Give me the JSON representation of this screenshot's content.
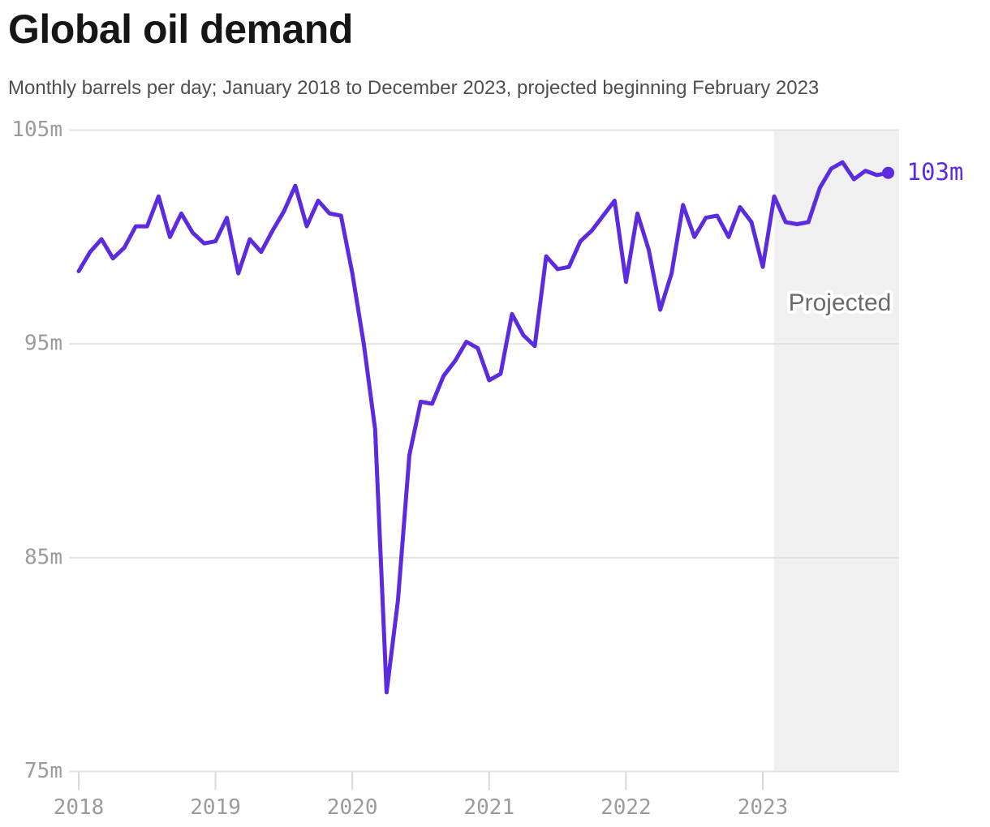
{
  "header": {
    "title": "Global oil demand",
    "subtitle": "Monthly barrels per day; January 2018 to December 2023, projected beginning February 2023"
  },
  "chart_data": {
    "type": "line",
    "title": "Global oil demand",
    "ylabel": "Monthly barrels per day (millions)",
    "xlabel": "",
    "x_start": "2018-01",
    "x_end": "2023-12",
    "ylim": [
      75,
      105
    ],
    "grid": "horizontal",
    "y_ticks": [
      105,
      95,
      85,
      75
    ],
    "y_tick_labels": [
      "105m",
      "95m",
      "85m",
      "75m"
    ],
    "x_tick_labels": [
      "2018",
      "2019",
      "2020",
      "2021",
      "2022",
      "2023"
    ],
    "x_tick_month_indices": [
      0,
      12,
      24,
      36,
      48,
      60
    ],
    "series": [
      {
        "name": "Global oil demand (million barrels per day)",
        "values": [
          98.4,
          99.3,
          99.9,
          99.0,
          99.5,
          100.5,
          100.5,
          101.9,
          100.0,
          101.1,
          100.2,
          99.7,
          99.8,
          100.9,
          98.3,
          99.9,
          99.3,
          100.3,
          101.2,
          102.4,
          100.5,
          101.7,
          101.1,
          101.0,
          98.3,
          95.0,
          91.0,
          78.7,
          83.0,
          89.8,
          92.3,
          92.2,
          93.5,
          94.2,
          95.1,
          94.8,
          93.3,
          93.6,
          96.4,
          95.4,
          94.9,
          99.1,
          98.5,
          98.6,
          99.8,
          100.3,
          101.0,
          101.7,
          97.9,
          101.1,
          99.4,
          96.6,
          98.3,
          101.5,
          100.0,
          100.9,
          101.0,
          100.0,
          101.4,
          100.7,
          98.6,
          101.9,
          100.7,
          100.6,
          100.7,
          102.3,
          103.2,
          103.5,
          102.7,
          103.1,
          102.9,
          103.0
        ]
      }
    ],
    "projected": {
      "label": "Projected",
      "start": "2023-02",
      "start_month_index": 61
    },
    "end_label": "103m",
    "end_value": 103.0,
    "colors": {
      "line": "#5c2be0",
      "end_dot": "#5c2be0",
      "end_label_text": "#5c2be0",
      "grid": "#e3e3e3",
      "tick_mark": "#d9d9d9",
      "tick_text": "#9b9b9b",
      "projected_band": "#f0f0f0",
      "projected_text": "#6a6a6a",
      "title_text": "#161616",
      "subtitle_text": "#4f4f4f"
    },
    "legend": "none"
  }
}
